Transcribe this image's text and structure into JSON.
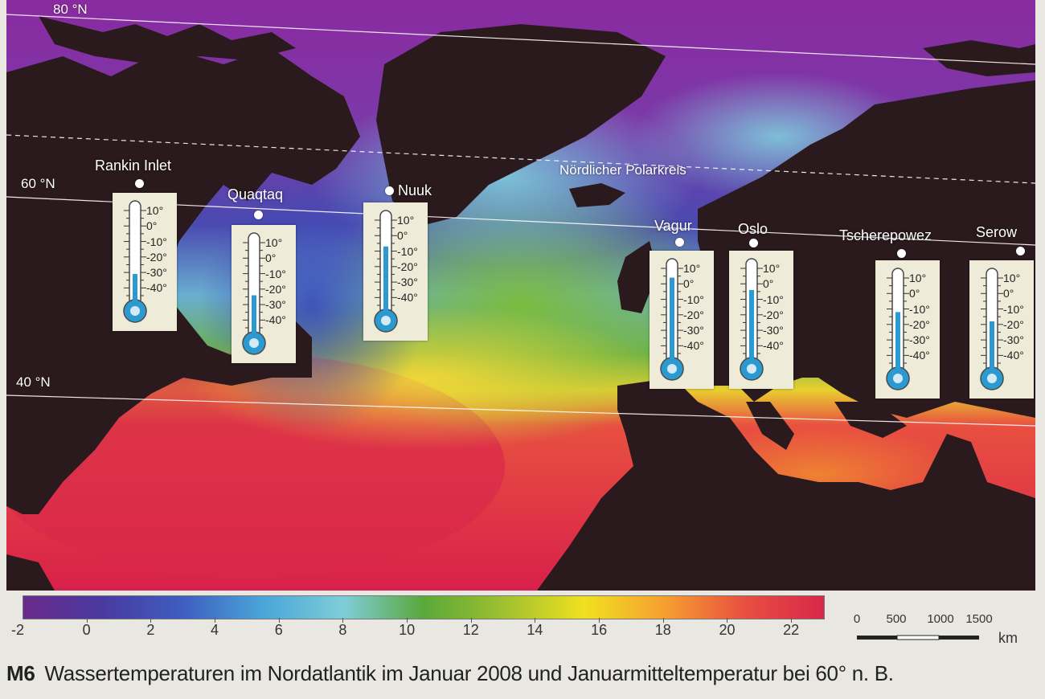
{
  "latitude_labels": [
    "80 °N",
    "60 °N",
    "40 °N"
  ],
  "polar_circle_label": "Nördlicher Polarkreis",
  "stations": [
    {
      "name": "Rankin Inlet",
      "jan_mean_temp_c": -31
    },
    {
      "name": "Quaqtaq",
      "jan_mean_temp_c": -24
    },
    {
      "name": "Nuuk",
      "jan_mean_temp_c": -7
    },
    {
      "name": "Vagur",
      "jan_mean_temp_c": 4
    },
    {
      "name": "Oslo",
      "jan_mean_temp_c": -4
    },
    {
      "name": "Tscherepowez",
      "jan_mean_temp_c": -12
    },
    {
      "name": "Serow",
      "jan_mean_temp_c": -18
    }
  ],
  "thermometer_scale": [
    "10°",
    "0°",
    "-10°",
    "-20°",
    "-30°",
    "-40°"
  ],
  "legend": {
    "min_label": "-2",
    "ticks": [
      "0",
      "2",
      "4",
      "6",
      "8",
      "10",
      "12",
      "14",
      "16",
      "18",
      "20",
      "22"
    ],
    "colors": [
      "#6a2a8a",
      "#4a3aa0",
      "#3e5ec0",
      "#4aa6d8",
      "#7fcdd8",
      "#5aa83a",
      "#9fc030",
      "#f0e020",
      "#f6a030",
      "#e85040",
      "#d8284a"
    ]
  },
  "scale_bar": {
    "ticks": [
      "0",
      "500",
      "1000",
      "1500"
    ],
    "unit": "km"
  },
  "caption": {
    "figure_id": "M6",
    "text": "Wassertemperaturen im Nordatlantik im Januar 2008 und Januarmitteltemperatur bei 60° n. B."
  }
}
